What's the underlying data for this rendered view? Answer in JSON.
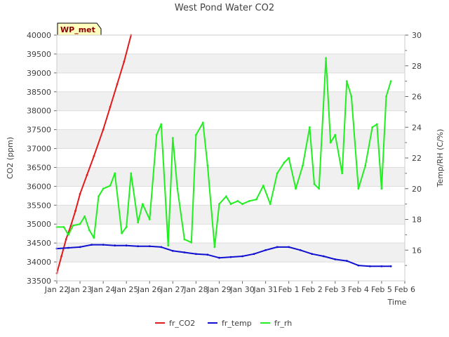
{
  "chart_data": {
    "type": "line",
    "title": "West Pond Water CO2",
    "station_badge": "WP_met",
    "xlabel": "Time",
    "ylabel": "CO2 (ppm)",
    "y2label": "Temp/RH (C/%)",
    "xlim": [
      0,
      15
    ],
    "ylim": [
      33500,
      40000
    ],
    "y2lim": [
      14,
      30
    ],
    "x_ticks": [
      {
        "x": 0,
        "label": "Jan 22"
      },
      {
        "x": 1,
        "label": "Jan 23"
      },
      {
        "x": 2,
        "label": "Jan 24"
      },
      {
        "x": 3,
        "label": "Jan 25"
      },
      {
        "x": 4,
        "label": "Jan 26"
      },
      {
        "x": 5,
        "label": "Jan 27"
      },
      {
        "x": 6,
        "label": "Jan 28"
      },
      {
        "x": 7,
        "label": "Jan 29"
      },
      {
        "x": 8,
        "label": "Jan 30"
      },
      {
        "x": 9,
        "label": "Jan 31"
      },
      {
        "x": 10,
        "label": "Feb 1"
      },
      {
        "x": 11,
        "label": "Feb 2"
      },
      {
        "x": 12,
        "label": "Feb 3"
      },
      {
        "x": 13,
        "label": "Feb 4"
      },
      {
        "x": 14,
        "label": "Feb 5"
      },
      {
        "x": 15,
        "label": "Feb 6"
      }
    ],
    "y_ticks": [
      33500,
      34000,
      34500,
      35000,
      35500,
      36000,
      36500,
      37000,
      37500,
      38000,
      38500,
      39000,
      39500,
      40000
    ],
    "y2_ticks": [
      16,
      18,
      20,
      22,
      24,
      26,
      28,
      30
    ],
    "series": [
      {
        "name": "fr_CO2",
        "axis": "left",
        "color": "#e31a1c",
        "x": [
          0.0,
          0.2,
          0.4,
          0.6,
          0.8,
          1.0,
          1.3,
          1.6,
          2.0,
          2.3,
          2.6,
          2.9,
          3.2
        ],
        "y": [
          33700,
          34150,
          34600,
          34950,
          35350,
          35800,
          36300,
          36800,
          37500,
          38100,
          38700,
          39300,
          40000
        ]
      },
      {
        "name": "fr_temp",
        "axis": "right",
        "color": "#1010d0",
        "x": [
          0.0,
          0.5,
          1.0,
          1.5,
          2.0,
          2.5,
          3.0,
          3.5,
          4.0,
          4.5,
          5.0,
          5.5,
          6.0,
          6.5,
          7.0,
          7.5,
          8.0,
          8.5,
          9.0,
          9.5,
          10.0,
          10.5,
          11.0,
          11.5,
          12.0,
          12.5,
          13.0,
          13.5,
          14.0,
          14.4
        ],
        "y": [
          16.1,
          16.15,
          16.2,
          16.35,
          16.35,
          16.3,
          16.3,
          16.25,
          16.25,
          16.2,
          15.95,
          15.85,
          15.75,
          15.7,
          15.5,
          15.55,
          15.6,
          15.75,
          16.0,
          16.2,
          16.2,
          16.0,
          15.75,
          15.6,
          15.4,
          15.3,
          15.0,
          14.95,
          14.95,
          14.95
        ]
      },
      {
        "name": "fr_rh",
        "axis": "right",
        "color": "#22ee22",
        "x": [
          0.0,
          0.3,
          0.5,
          0.7,
          1.0,
          1.2,
          1.4,
          1.6,
          1.8,
          2.0,
          2.3,
          2.5,
          2.8,
          3.0,
          3.2,
          3.5,
          3.7,
          4.0,
          4.3,
          4.5,
          4.8,
          5.0,
          5.2,
          5.5,
          5.8,
          6.0,
          6.3,
          6.5,
          6.8,
          7.0,
          7.3,
          7.5,
          7.8,
          8.0,
          8.3,
          8.6,
          8.9,
          9.2,
          9.5,
          9.8,
          10.0,
          10.3,
          10.6,
          10.9,
          11.1,
          11.3,
          11.6,
          11.8,
          12.0,
          12.3,
          12.5,
          12.7,
          13.0,
          13.3,
          13.6,
          13.8,
          14.0,
          14.2,
          14.4
        ],
        "y": [
          17.5,
          17.5,
          17.0,
          17.6,
          17.7,
          18.2,
          17.3,
          16.8,
          19.5,
          20.0,
          20.2,
          21.0,
          17.1,
          17.5,
          21.0,
          17.8,
          19.0,
          18.0,
          23.5,
          24.2,
          16.3,
          23.3,
          20.0,
          16.7,
          16.5,
          23.5,
          24.3,
          21.5,
          16.2,
          19.0,
          19.5,
          19.0,
          19.2,
          19.0,
          19.2,
          19.3,
          20.2,
          19.0,
          21.0,
          21.7,
          22.0,
          20.0,
          21.5,
          24.0,
          20.3,
          20.0,
          28.5,
          23.0,
          23.5,
          21.0,
          27.0,
          26.0,
          20.0,
          21.5,
          24.0,
          24.2,
          20.0,
          26.0,
          27.0
        ]
      }
    ],
    "legend": {
      "position": "bottom-center",
      "entries": [
        "fr_CO2",
        "fr_temp",
        "fr_rh"
      ]
    }
  }
}
